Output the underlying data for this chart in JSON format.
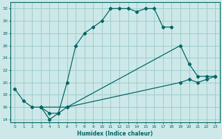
{
  "xlabel": "Humidex (Indice chaleur)",
  "background_color": "#cde8e8",
  "grid_color": "#a0cccc",
  "line_color": "#006666",
  "xlim": [
    -0.5,
    23.5
  ],
  "ylim": [
    13.5,
    33.0
  ],
  "xticks": [
    0,
    1,
    2,
    3,
    4,
    5,
    6,
    7,
    8,
    9,
    10,
    11,
    12,
    13,
    14,
    15,
    16,
    17,
    18,
    19,
    20,
    21,
    22,
    23
  ],
  "yticks": [
    14,
    16,
    18,
    20,
    22,
    24,
    26,
    28,
    30,
    32
  ],
  "line1_x": [
    0,
    1,
    2,
    3,
    4,
    5,
    6,
    7,
    8,
    9,
    10,
    11,
    12,
    13,
    14,
    15,
    16,
    17,
    18
  ],
  "line1_y": [
    19,
    17,
    16,
    16,
    14,
    15,
    20,
    26,
    28,
    29,
    30,
    32,
    32,
    32,
    31.5,
    32,
    32,
    29,
    29
  ],
  "line2_x": [
    3,
    4,
    5,
    6,
    19,
    20,
    21,
    22,
    23
  ],
  "line2_y": [
    16,
    15,
    15,
    16,
    26,
    23,
    21,
    21,
    21
  ],
  "line3_x": [
    3,
    6,
    19,
    20,
    21,
    22,
    23
  ],
  "line3_y": [
    16,
    16,
    20,
    20.5,
    20,
    20.5,
    21
  ]
}
